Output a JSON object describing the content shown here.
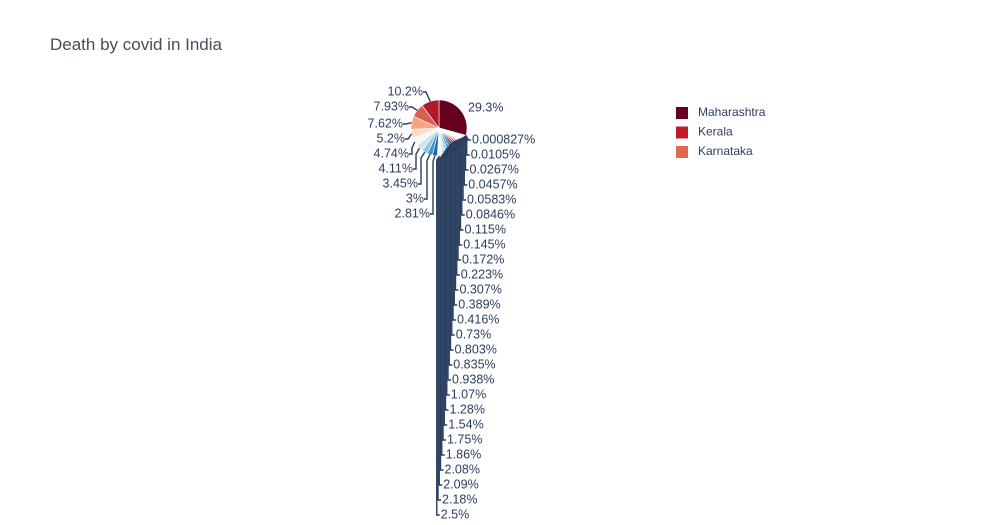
{
  "chart_data": {
    "type": "pie",
    "title": "Death by covid in India",
    "legend_position": "top-right",
    "legend": [
      {
        "name": "Maharashtra",
        "color": "#67001f"
      },
      {
        "name": "Kerala",
        "color": "#c01a2c"
      },
      {
        "name": "Karnataka",
        "color": "#e0694e"
      }
    ],
    "slices": [
      {
        "value": 29.3,
        "label": "29.3%",
        "color": "#67001f"
      },
      {
        "value": 0.000827,
        "label": "0.000827%",
        "color": "#f7f7f7"
      },
      {
        "value": 0.0105,
        "label": "0.0105%",
        "color": "#f6a480"
      },
      {
        "value": 0.0267,
        "label": "0.0267%",
        "color": "#e5735a"
      },
      {
        "value": 0.0457,
        "label": "0.0457%",
        "color": "#c33a3a"
      },
      {
        "value": 0.0583,
        "label": "0.0583%",
        "color": "#b2182b"
      },
      {
        "value": 0.0846,
        "label": "0.0846%",
        "color": "#053061"
      },
      {
        "value": 0.115,
        "label": "0.115%",
        "color": "#1a4f8a"
      },
      {
        "value": 0.145,
        "label": "0.145%",
        "color": "#2166ac"
      },
      {
        "value": 0.172,
        "label": "0.172%",
        "color": "#3a7fba"
      },
      {
        "value": 0.223,
        "label": "0.223%",
        "color": "#5a9bcb"
      },
      {
        "value": 0.307,
        "label": "0.307%",
        "color": "#8dc0dd"
      },
      {
        "value": 0.389,
        "label": "0.389%",
        "color": "#b7d7e8"
      },
      {
        "value": 0.416,
        "label": "0.416%",
        "color": "#dceaf2"
      },
      {
        "value": 0.73,
        "label": "0.73%",
        "color": "#f7f7f7"
      },
      {
        "value": 0.803,
        "label": "0.803%",
        "color": "#fbe3d6"
      },
      {
        "value": 0.835,
        "label": "0.835%",
        "color": "#f8c7ad"
      },
      {
        "value": 0.938,
        "label": "0.938%",
        "color": "#f2a37f"
      },
      {
        "value": 1.07,
        "label": "1.07%",
        "color": "#e07050"
      },
      {
        "value": 1.28,
        "label": "1.28%",
        "color": "#c8403b"
      },
      {
        "value": 1.54,
        "label": "1.54%",
        "color": "#b2182b"
      },
      {
        "value": 1.75,
        "label": "1.75%",
        "color": "#053061"
      },
      {
        "value": 1.86,
        "label": "1.86%",
        "color": "#2166ac"
      },
      {
        "value": 2.08,
        "label": "2.08%",
        "color": "#4393c3"
      },
      {
        "value": 2.09,
        "label": "2.09%",
        "color": "#92c5de"
      },
      {
        "value": 2.18,
        "label": "2.18%",
        "color": "#d1e5f0"
      },
      {
        "value": 2.5,
        "label": "2.5%",
        "color": "#f7f7f7"
      },
      {
        "value": 2.81,
        "label": "2.81%",
        "color": "#2166ac"
      },
      {
        "value": 3,
        "label": "3%",
        "color": "#4393c3"
      },
      {
        "value": 3.45,
        "label": "3.45%",
        "color": "#92c5de"
      },
      {
        "value": 4.11,
        "label": "4.11%",
        "color": "#d1e5f0"
      },
      {
        "value": 4.74,
        "label": "4.74%",
        "color": "#f7f7f7"
      },
      {
        "value": 5.2,
        "label": "5.2%",
        "color": "#fddbc7"
      },
      {
        "value": 7.62,
        "label": "7.62%",
        "color": "#f4a582"
      },
      {
        "value": 7.93,
        "label": "7.93%",
        "color": "#d6604d"
      },
      {
        "value": 10.2,
        "label": "10.2%",
        "color": "#b2182b"
      }
    ]
  }
}
